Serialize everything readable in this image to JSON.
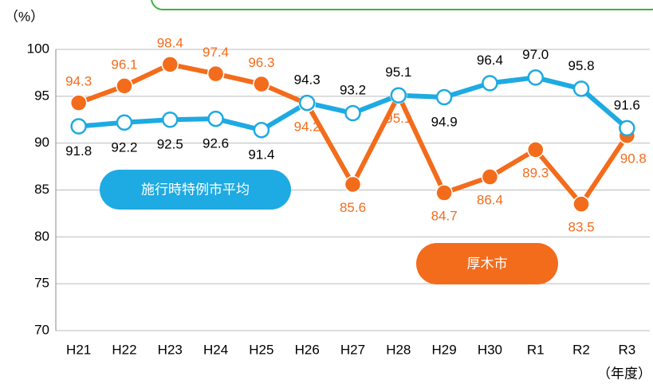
{
  "chart_data": {
    "type": "line",
    "y_unit_label": "（%）",
    "x_unit_label": "（年度）",
    "categories": [
      "H21",
      "H22",
      "H23",
      "H24",
      "H25",
      "H26",
      "H27",
      "H28",
      "H29",
      "H30",
      "R1",
      "R2",
      "R3"
    ],
    "series": [
      {
        "name": "厚木市",
        "color": "#f36c1c",
        "values": [
          94.3,
          96.1,
          98.4,
          97.4,
          96.3,
          94.2,
          85.6,
          95.1,
          84.7,
          86.4,
          89.3,
          83.5,
          90.8
        ]
      },
      {
        "name": "施行時特例市平均",
        "color": "#1eaae2",
        "values": [
          91.8,
          92.2,
          92.5,
          92.6,
          91.4,
          94.3,
          93.2,
          95.1,
          94.9,
          96.4,
          97.0,
          95.8,
          91.6
        ],
        "value_labels": [
          "91.8",
          "92.2",
          "92.5",
          "92.6",
          "91.4",
          "94.3",
          "93.2",
          "95.1",
          "94.9",
          "96.4",
          "97.0",
          "95.8",
          "91.6"
        ]
      }
    ],
    "ylim": [
      70,
      100
    ],
    "yticks": [
      70,
      75,
      80,
      85,
      90,
      95,
      100
    ],
    "grid": true
  }
}
